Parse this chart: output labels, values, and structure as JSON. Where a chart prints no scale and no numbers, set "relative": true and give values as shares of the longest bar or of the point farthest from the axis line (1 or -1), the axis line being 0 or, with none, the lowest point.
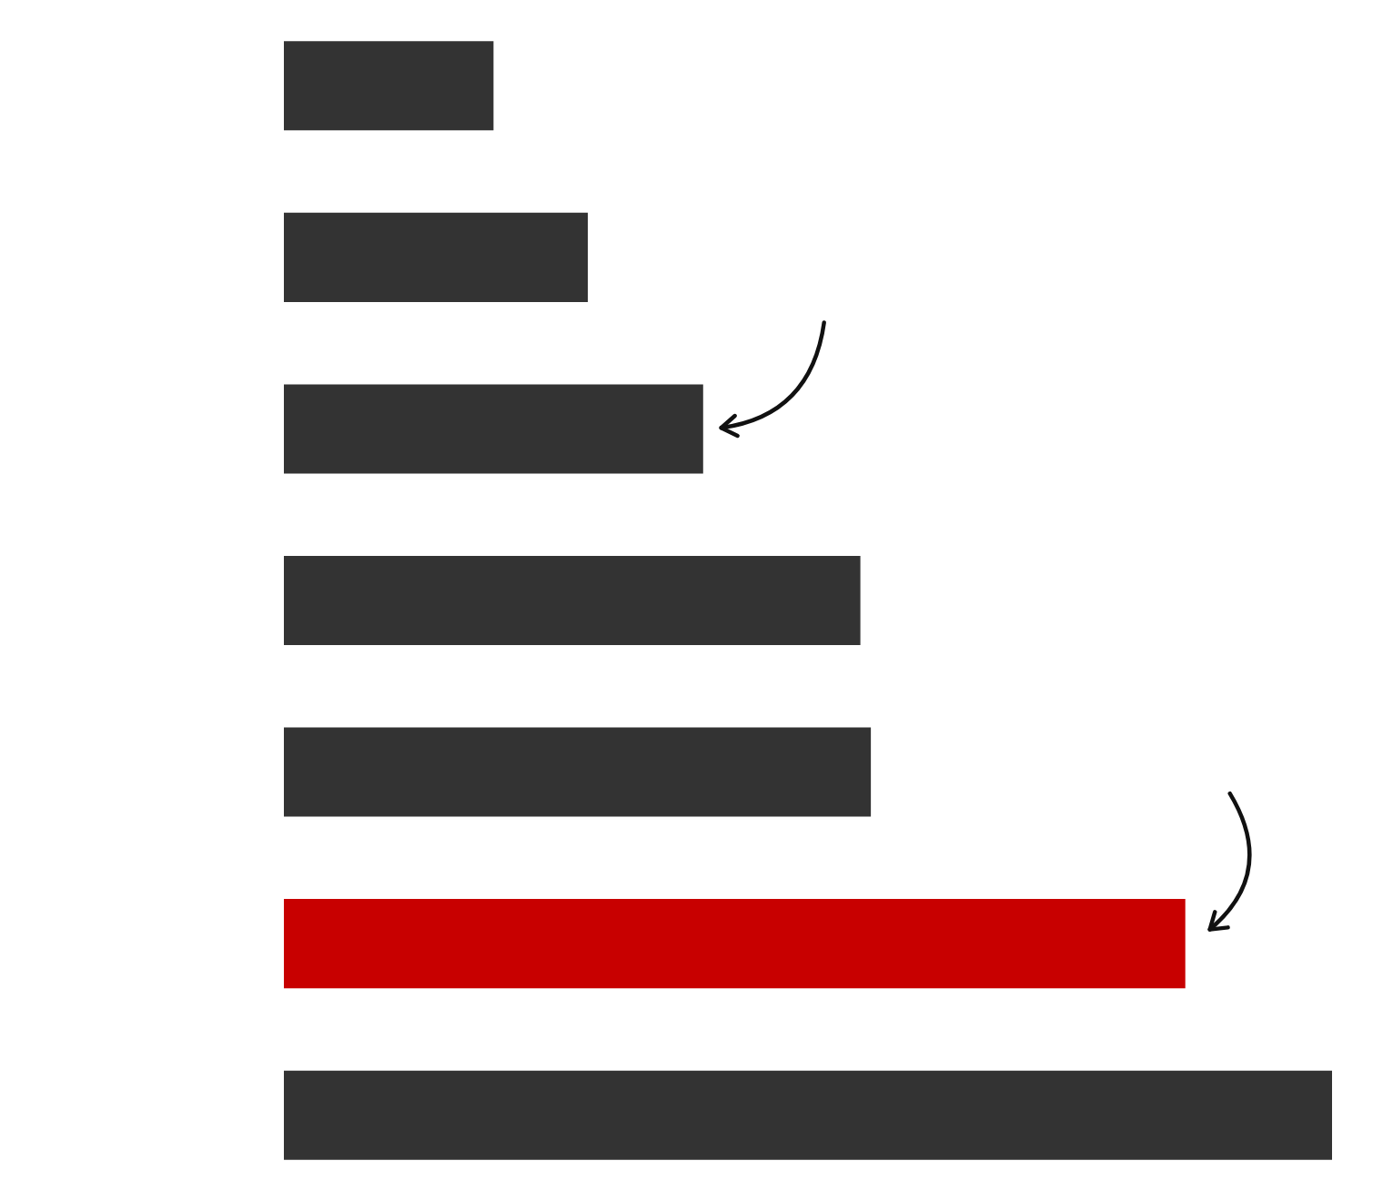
{
  "chart_data": {
    "type": "bar",
    "orientation": "horizontal",
    "relative": true,
    "categories": [
      null,
      null,
      null,
      null,
      null,
      null,
      null
    ],
    "values": [
      0.2,
      0.29,
      0.4,
      0.55,
      0.56,
      0.86,
      1
    ],
    "colors": [
      "#333333",
      "#333333",
      "#333333",
      "#333333",
      "#333333",
      "#c80000",
      "#333333"
    ]
  }
}
